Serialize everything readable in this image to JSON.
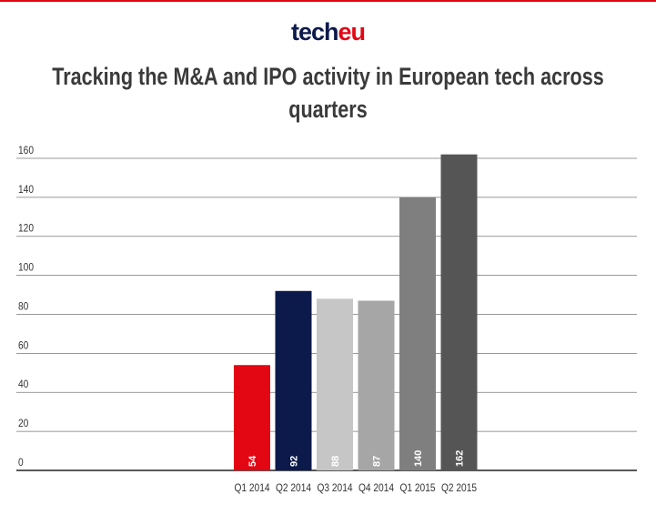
{
  "chart_data": {
    "type": "bar",
    "brand": [
      "tech",
      "eu"
    ],
    "brand_colors": [
      "#0c1a4b",
      "#e30613"
    ],
    "title": "Tracking the M&A and IPO activity in European tech across quarters",
    "categories": [
      "Q1 2014",
      "Q2 2014",
      "Q3 2014",
      "Q4 2014",
      "Q1 2015",
      "Q2 2015"
    ],
    "values": [
      54,
      92,
      88,
      87,
      140,
      162
    ],
    "colors": [
      "#e30613",
      "#0c1a4b",
      "#c6c6c6",
      "#a6a6a6",
      "#7f7f7f",
      "#555555"
    ],
    "ylim": [
      0,
      160
    ],
    "yticks": [
      0,
      20,
      40,
      60,
      80,
      100,
      120,
      140,
      160
    ],
    "grid": true
  }
}
